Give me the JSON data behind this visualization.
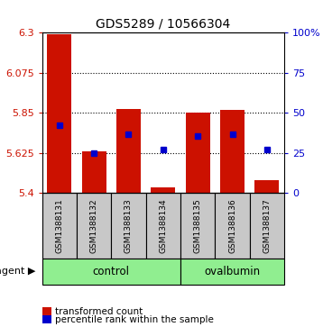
{
  "title": "GDS5289 / 10566304",
  "samples": [
    "GSM1388131",
    "GSM1388132",
    "GSM1388133",
    "GSM1388134",
    "GSM1388135",
    "GSM1388136",
    "GSM1388137"
  ],
  "red_bar_tops": [
    6.29,
    5.635,
    5.87,
    5.43,
    5.853,
    5.865,
    5.47
  ],
  "blue_dot_y": [
    5.78,
    5.625,
    5.73,
    5.643,
    5.72,
    5.73,
    5.643
  ],
  "y_min": 5.4,
  "y_max": 6.3,
  "yticks_left": [
    5.4,
    5.625,
    5.85,
    6.075,
    6.3
  ],
  "ytick_labels_left": [
    "5.4",
    "5.625",
    "5.85",
    "6.075",
    "6.3"
  ],
  "yticks_right_vals": [
    5.4,
    5.625,
    5.85,
    6.075,
    6.3
  ],
  "ytick_labels_right": [
    "0",
    "25",
    "50",
    "75",
    "100%"
  ],
  "control_samples": [
    0,
    1,
    2,
    3
  ],
  "ovalbumin_samples": [
    4,
    5,
    6
  ],
  "bar_color": "#cc1100",
  "dot_color": "#0000cc",
  "control_label": "control",
  "ovalbumin_label": "ovalbumin",
  "agent_label": "agent",
  "legend1": "transformed count",
  "legend2": "percentile rank within the sample",
  "bar_width": 0.7,
  "group_bg_color": "#90ee90",
  "sample_bg_color": "#c8c8c8",
  "left_color": "#cc1100",
  "right_color": "#0000cc",
  "title_fontsize": 10
}
